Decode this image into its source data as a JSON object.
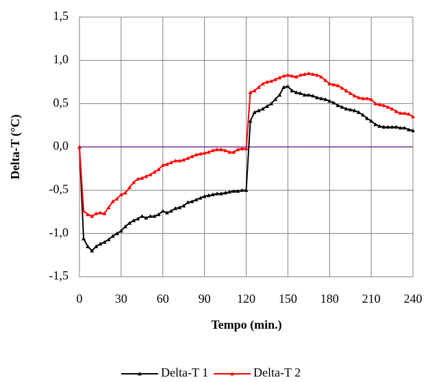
{
  "chart_data": {
    "type": "line",
    "x_label": "Tempo (min.)",
    "y_label": "Delta-T (°C)",
    "x": [
      0,
      3,
      6,
      9,
      12,
      15,
      18,
      21,
      24,
      27,
      30,
      33,
      36,
      39,
      42,
      45,
      48,
      51,
      54,
      57,
      60,
      63,
      66,
      69,
      72,
      75,
      78,
      81,
      84,
      87,
      90,
      93,
      96,
      99,
      102,
      105,
      108,
      111,
      114,
      117,
      120,
      123,
      126,
      129,
      132,
      135,
      138,
      141,
      144,
      147,
      150,
      153,
      156,
      159,
      162,
      165,
      168,
      171,
      174,
      177,
      180,
      183,
      186,
      189,
      192,
      195,
      198,
      201,
      204,
      207,
      210,
      213,
      216,
      219,
      222,
      225,
      228,
      231,
      234,
      237,
      240
    ],
    "series": [
      {
        "name": "Delta-T 1",
        "color": "#000000",
        "values": [
          0,
          -1.06,
          -1.15,
          -1.2,
          -1.15,
          -1.12,
          -1.1,
          -1.07,
          -1.03,
          -1.0,
          -0.97,
          -0.92,
          -0.88,
          -0.85,
          -0.83,
          -0.8,
          -0.82,
          -0.8,
          -0.8,
          -0.78,
          -0.74,
          -0.76,
          -0.74,
          -0.71,
          -0.7,
          -0.68,
          -0.64,
          -0.63,
          -0.61,
          -0.59,
          -0.57,
          -0.56,
          -0.55,
          -0.54,
          -0.54,
          -0.53,
          -0.52,
          -0.51,
          -0.51,
          -0.5,
          -0.5,
          0.3,
          0.4,
          0.42,
          0.44,
          0.47,
          0.5,
          0.55,
          0.6,
          0.69,
          0.7,
          0.65,
          0.63,
          0.62,
          0.6,
          0.6,
          0.59,
          0.57,
          0.56,
          0.55,
          0.53,
          0.51,
          0.48,
          0.46,
          0.44,
          0.43,
          0.42,
          0.4,
          0.37,
          0.33,
          0.3,
          0.26,
          0.24,
          0.23,
          0.23,
          0.23,
          0.23,
          0.22,
          0.22,
          0.2,
          0.19
        ]
      },
      {
        "name": "Delta-T 2",
        "color": "#ff0000",
        "values": [
          0,
          -0.74,
          -0.78,
          -0.8,
          -0.77,
          -0.76,
          -0.77,
          -0.7,
          -0.63,
          -0.6,
          -0.55,
          -0.53,
          -0.47,
          -0.41,
          -0.37,
          -0.36,
          -0.34,
          -0.32,
          -0.29,
          -0.26,
          -0.21,
          -0.2,
          -0.18,
          -0.16,
          -0.16,
          -0.15,
          -0.13,
          -0.11,
          -0.09,
          -0.08,
          -0.07,
          -0.06,
          -0.04,
          -0.03,
          -0.03,
          -0.04,
          -0.06,
          -0.06,
          -0.03,
          -0.02,
          -0.02,
          0.63,
          0.65,
          0.69,
          0.73,
          0.75,
          0.76,
          0.78,
          0.8,
          0.82,
          0.83,
          0.82,
          0.81,
          0.83,
          0.84,
          0.85,
          0.84,
          0.83,
          0.81,
          0.77,
          0.73,
          0.72,
          0.71,
          0.68,
          0.65,
          0.62,
          0.59,
          0.57,
          0.56,
          0.56,
          0.55,
          0.5,
          0.49,
          0.48,
          0.46,
          0.44,
          0.41,
          0.39,
          0.39,
          0.38,
          0.35
        ]
      }
    ],
    "xlim": [
      0,
      240
    ],
    "xticks": [
      0,
      30,
      60,
      90,
      120,
      150,
      180,
      210,
      240
    ],
    "ylim": [
      -1.5,
      1.5
    ],
    "yticks": [
      {
        "value": -1.5,
        "label": "-1,5"
      },
      {
        "value": -1,
        "label": "-1,0"
      },
      {
        "value": -0.5,
        "label": "-0,5"
      },
      {
        "value": 0,
        "label": "0,0"
      },
      {
        "value": 0.5,
        "label": "0,5"
      },
      {
        "value": 1,
        "label": "1,0"
      },
      {
        "value": 1.5,
        "label": "1,5"
      }
    ],
    "grid": true,
    "zero_line_color": "#7030a0",
    "legend": "bottom",
    "marker": "triangle"
  }
}
